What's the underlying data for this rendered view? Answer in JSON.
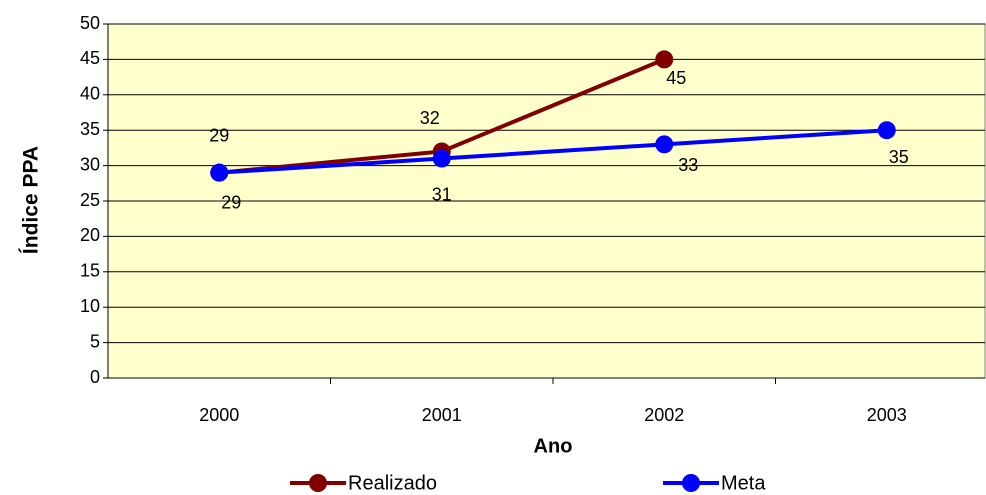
{
  "chart_data": {
    "type": "line",
    "x_label": "Ano",
    "y_label": "Índice PPA",
    "categories": [
      "2000",
      "2001",
      "2002",
      "2003"
    ],
    "series": [
      {
        "name": "Realizado",
        "color": "#800000",
        "values": [
          29,
          32,
          45,
          null
        ]
      },
      {
        "name": "Meta",
        "color": "#0000ff",
        "values": [
          29,
          31,
          33,
          35
        ]
      }
    ],
    "ylim": [
      0,
      50
    ],
    "yticks": [
      0,
      5,
      10,
      15,
      20,
      25,
      30,
      35,
      40,
      45,
      50
    ],
    "grid": true,
    "background": "#ffffcc",
    "legend": "bottom"
  }
}
